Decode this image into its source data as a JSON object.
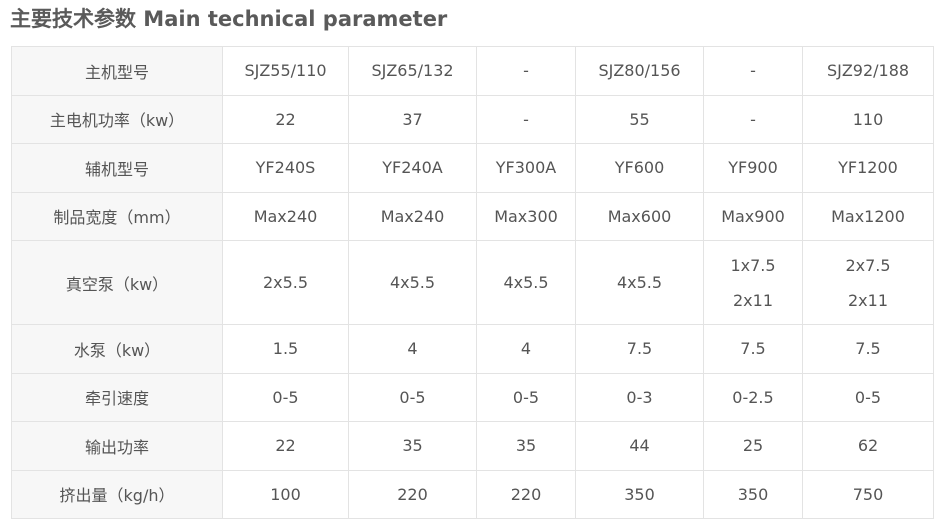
{
  "title": "主要技术参数 Main technical parameter",
  "rows": [
    {
      "label": "主机型号",
      "cells": [
        "SJZ55/110",
        "SJZ65/132",
        "-",
        "SJZ80/156",
        "-",
        "SJZ92/188"
      ]
    },
    {
      "label": "主电机功率（kw）",
      "cells": [
        "22",
        "37",
        "-",
        "55",
        "-",
        "110"
      ]
    },
    {
      "label": "辅机型号",
      "cells": [
        "YF240S",
        "YF240A",
        "YF300A",
        "YF600",
        "YF900",
        "YF1200"
      ]
    },
    {
      "label": "制品宽度（mm）",
      "cells": [
        "Max240",
        "Max240",
        "Max300",
        "Max600",
        "Max900",
        "Max1200"
      ]
    },
    {
      "label": "真空泵（kw）",
      "cells": [
        "2x5.5",
        "4x5.5",
        "4x5.5",
        "4x5.5",
        "1x7.5",
        "2x7.5"
      ],
      "cells_line2": [
        "",
        "",
        "",
        "",
        "2x11",
        "2x11"
      ]
    },
    {
      "label": "水泵（kw）",
      "cells": [
        "1.5",
        "4",
        "4",
        "7.5",
        "7.5",
        "7.5"
      ]
    },
    {
      "label": "牵引速度",
      "cells": [
        "0-5",
        "0-5",
        "0-5",
        "0-3",
        "0-2.5",
        "0-5"
      ]
    },
    {
      "label": "输出功率",
      "cells": [
        "22",
        "35",
        "35",
        "44",
        "25",
        "62"
      ]
    },
    {
      "label": "挤出量（kg/h）",
      "cells": [
        "100",
        "220",
        "220",
        "350",
        "350",
        "750"
      ]
    }
  ]
}
